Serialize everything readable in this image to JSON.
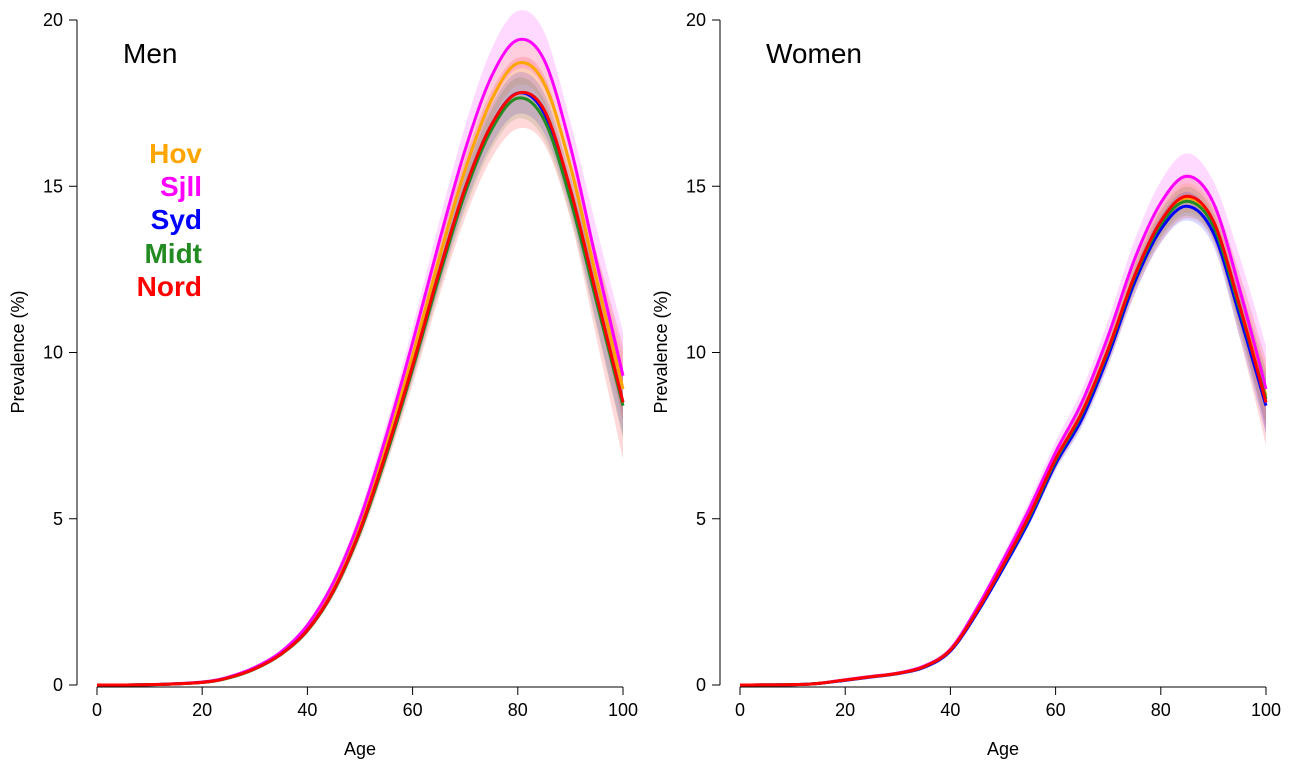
{
  "chart_data": [
    {
      "type": "line",
      "title": "Men",
      "xlabel": "Age",
      "ylabel": "Prevalence (%)",
      "xlim": [
        0,
        100
      ],
      "ylim": [
        0,
        20
      ],
      "xticks": [
        "0",
        "20",
        "40",
        "60",
        "80",
        "100"
      ],
      "yticks": [
        "0",
        "5",
        "10",
        "15",
        "20"
      ],
      "grid": false,
      "legend_position": "top-left",
      "x": [
        0,
        10,
        20,
        25,
        30,
        35,
        40,
        45,
        50,
        55,
        60,
        65,
        70,
        75,
        80,
        85,
        90,
        95,
        100
      ],
      "series": [
        {
          "name": "Hov",
          "color": "#FFA500",
          "values": [
            0,
            0.01,
            0.08,
            0.22,
            0.5,
            0.95,
            1.7,
            2.95,
            4.8,
            7.2,
            9.9,
            12.8,
            15.5,
            17.6,
            18.7,
            18.1,
            15.6,
            12.2,
            8.9
          ],
          "ci": 0.35
        },
        {
          "name": "Sjll",
          "color": "#FF00FF",
          "values": [
            0,
            0.01,
            0.09,
            0.24,
            0.53,
            1.0,
            1.8,
            3.1,
            5.0,
            7.5,
            10.3,
            13.3,
            16.1,
            18.3,
            19.4,
            18.8,
            16.2,
            12.7,
            9.3
          ],
          "ci": 0.45
        },
        {
          "name": "Syd",
          "color": "#0000FF",
          "values": [
            0,
            0.01,
            0.08,
            0.22,
            0.49,
            0.93,
            1.65,
            2.85,
            4.65,
            7.0,
            9.6,
            12.4,
            14.95,
            16.85,
            17.8,
            17.2,
            14.8,
            11.6,
            8.5
          ],
          "ci": 0.35
        },
        {
          "name": "Midt",
          "color": "#228B22",
          "values": [
            0,
            0.01,
            0.08,
            0.21,
            0.48,
            0.92,
            1.63,
            2.82,
            4.6,
            6.9,
            9.5,
            12.25,
            14.8,
            16.7,
            17.65,
            17.0,
            14.6,
            11.5,
            8.4
          ],
          "ci": 0.35
        },
        {
          "name": "Nord",
          "color": "#FF0000",
          "values": [
            0,
            0.01,
            0.08,
            0.22,
            0.49,
            0.93,
            1.65,
            2.85,
            4.65,
            7.0,
            9.6,
            12.4,
            14.95,
            16.85,
            17.8,
            17.3,
            14.9,
            11.7,
            8.5
          ],
          "ci": 0.6
        }
      ]
    },
    {
      "type": "line",
      "title": "Women",
      "xlabel": "Age",
      "ylabel": "Prevalence (%)",
      "xlim": [
        0,
        100
      ],
      "ylim": [
        0,
        20
      ],
      "xticks": [
        "0",
        "20",
        "40",
        "60",
        "80",
        "100"
      ],
      "yticks": [
        "0",
        "5",
        "10",
        "15",
        "20"
      ],
      "grid": false,
      "x": [
        0,
        10,
        15,
        20,
        25,
        30,
        35,
        40,
        45,
        50,
        55,
        60,
        65,
        70,
        75,
        80,
        85,
        90,
        95,
        100
      ],
      "series": [
        {
          "name": "Hov",
          "color": "#FFA500",
          "values": [
            0,
            0.01,
            0.05,
            0.15,
            0.25,
            0.35,
            0.55,
            1.05,
            2.2,
            3.6,
            5.1,
            6.8,
            8.2,
            10.1,
            12.3,
            13.9,
            14.65,
            13.9,
            11.4,
            8.7
          ],
          "ci": 0.3
        },
        {
          "name": "Sjll",
          "color": "#FF00FF",
          "values": [
            0,
            0.01,
            0.05,
            0.16,
            0.26,
            0.36,
            0.57,
            1.08,
            2.3,
            3.75,
            5.3,
            7.0,
            8.5,
            10.5,
            12.8,
            14.5,
            15.3,
            14.5,
            11.9,
            8.9
          ],
          "ci": 0.45
        },
        {
          "name": "Syd",
          "color": "#0000FF",
          "values": [
            0,
            0.01,
            0.05,
            0.14,
            0.24,
            0.34,
            0.53,
            1.02,
            2.15,
            3.5,
            4.95,
            6.65,
            8.0,
            9.9,
            12.1,
            13.7,
            14.4,
            13.6,
            11.1,
            8.4
          ],
          "ci": 0.3
        },
        {
          "name": "Midt",
          "color": "#228B22",
          "values": [
            0,
            0.01,
            0.05,
            0.15,
            0.25,
            0.35,
            0.55,
            1.05,
            2.2,
            3.58,
            5.05,
            6.75,
            8.15,
            10.05,
            12.25,
            13.85,
            14.55,
            13.8,
            11.3,
            8.6
          ],
          "ci": 0.3
        },
        {
          "name": "Nord",
          "color": "#FF0000",
          "values": [
            0,
            0.01,
            0.05,
            0.15,
            0.25,
            0.35,
            0.55,
            1.05,
            2.2,
            3.6,
            5.1,
            6.8,
            8.2,
            10.1,
            12.3,
            13.95,
            14.7,
            13.95,
            11.4,
            8.5
          ],
          "ci": 0.45
        }
      ]
    }
  ]
}
